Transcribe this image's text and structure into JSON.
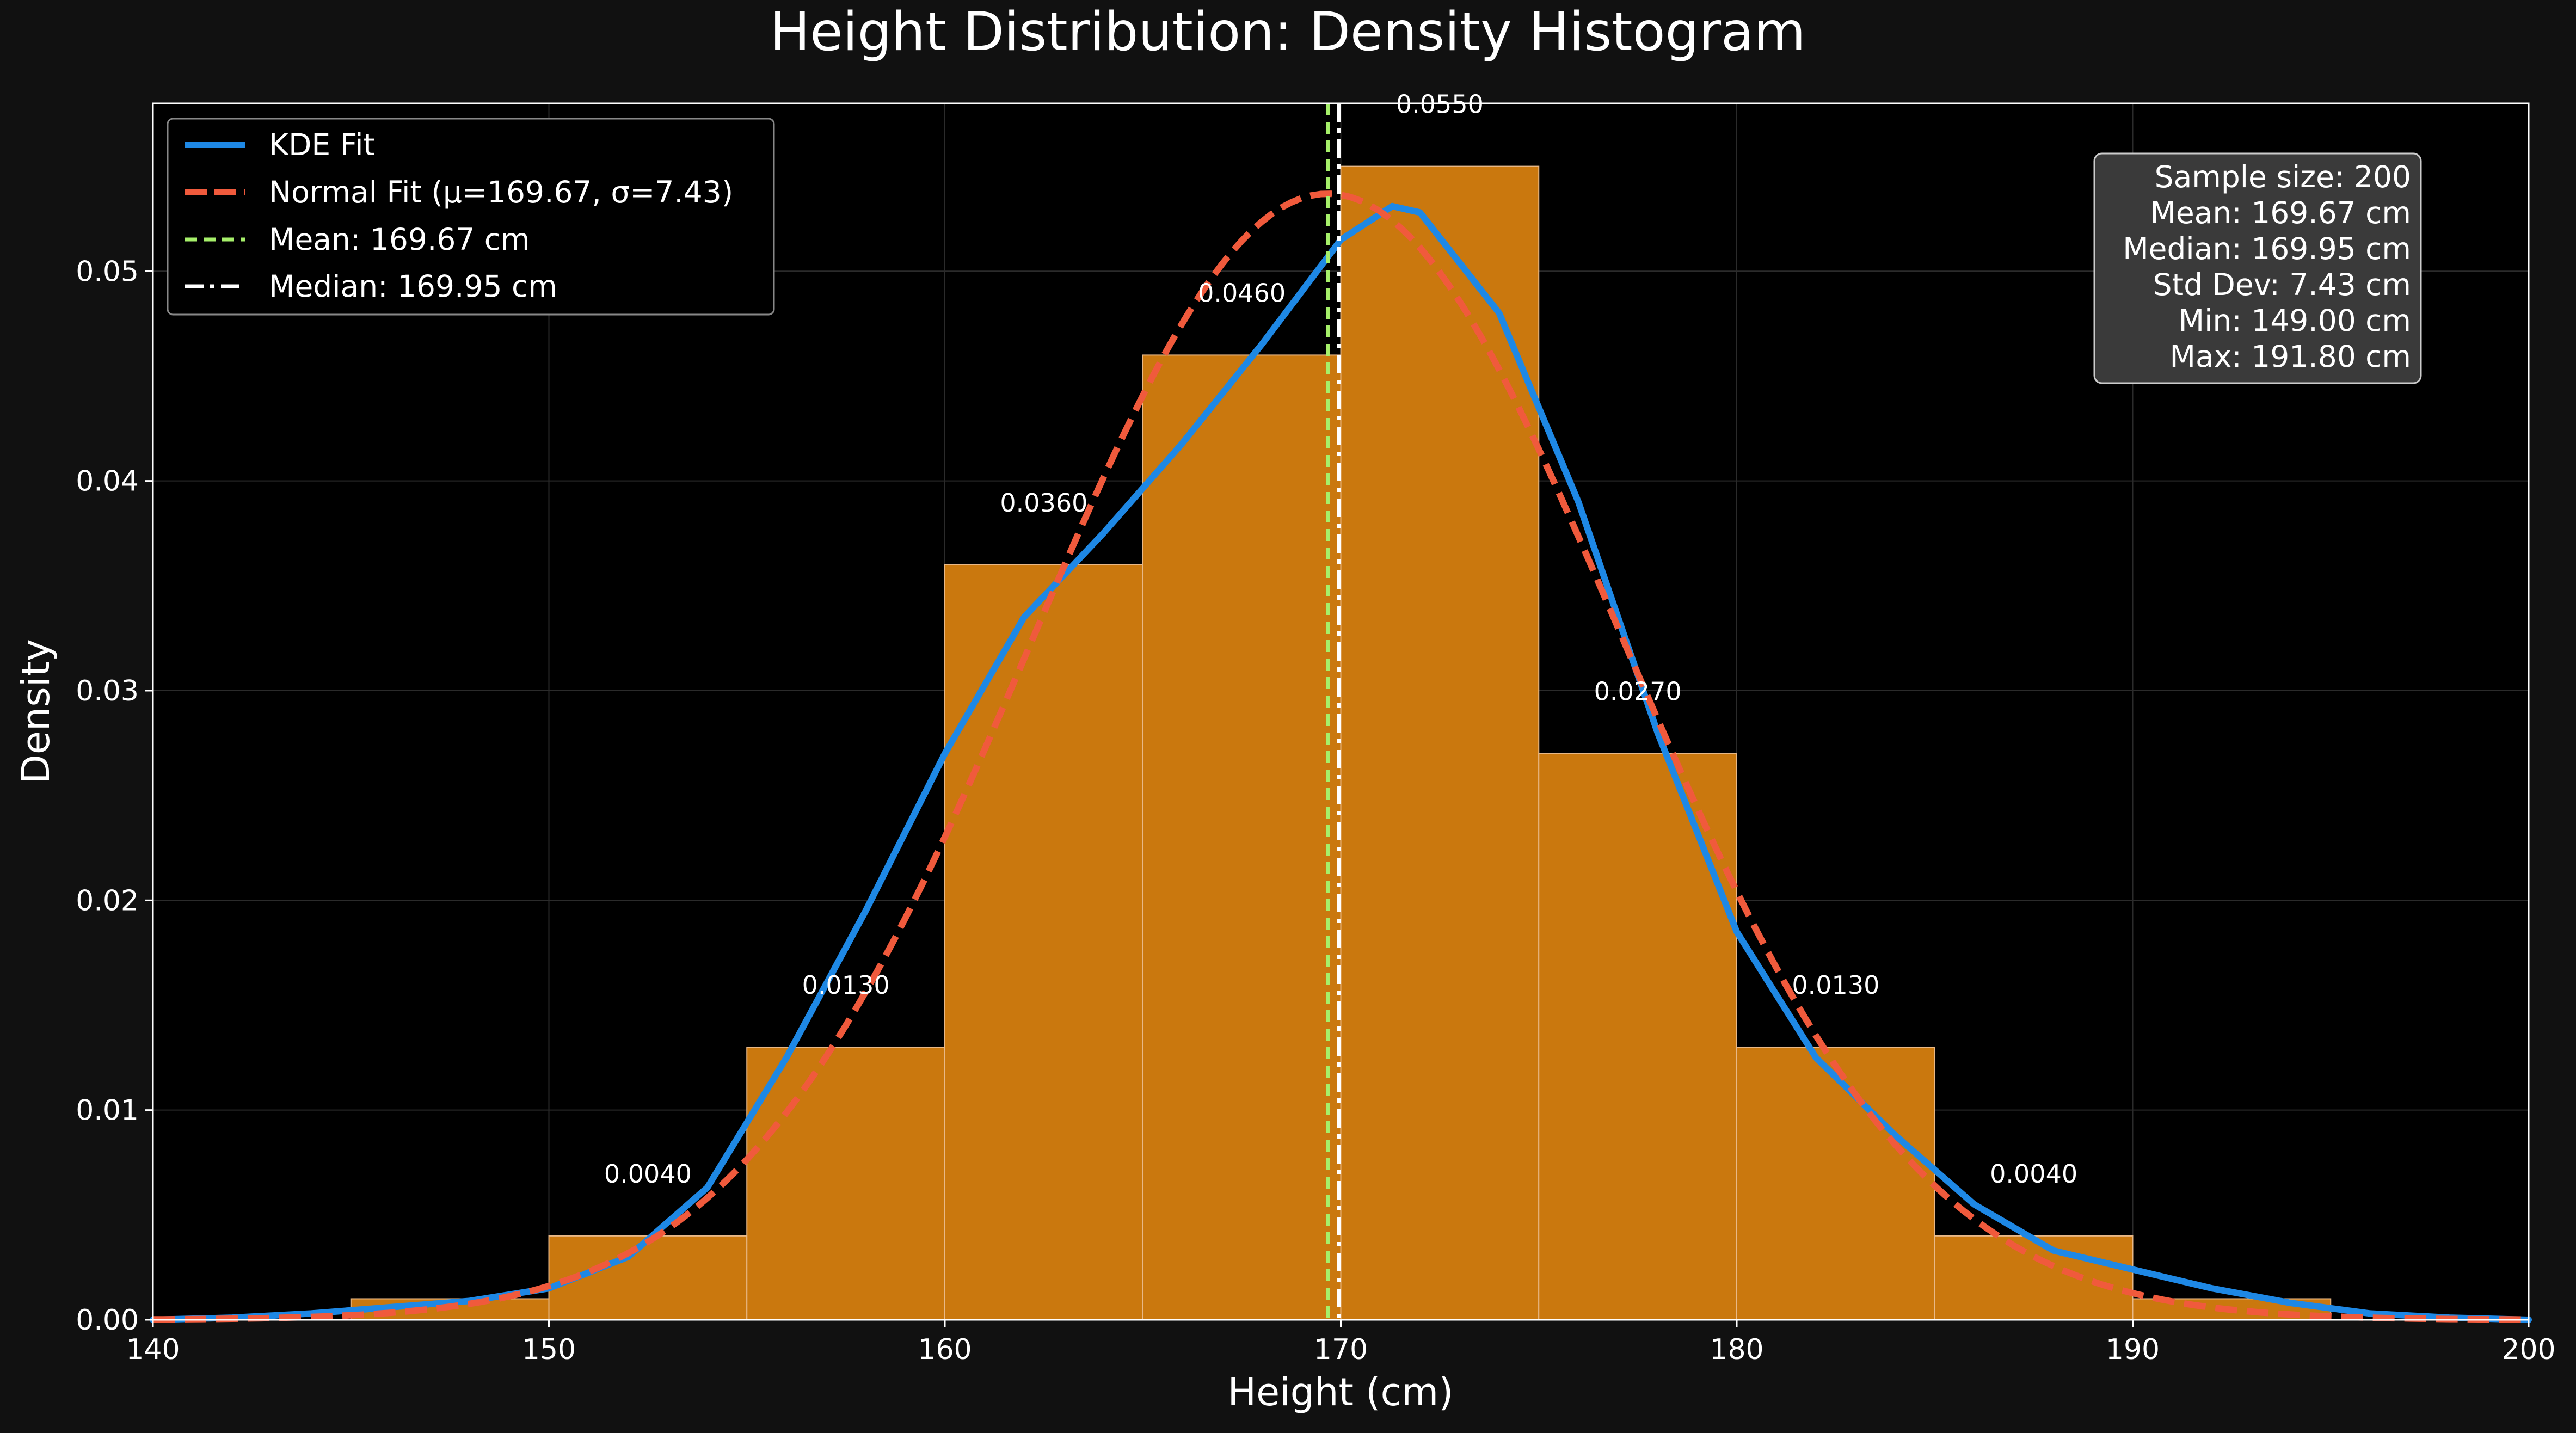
{
  "chart_data": {
    "type": "bar",
    "title": "Height Distribution: Density Histogram",
    "xlabel": "Height (cm)",
    "ylabel": "Density",
    "xlim": [
      140,
      200
    ],
    "ylim": [
      0,
      0.058
    ],
    "grid": true,
    "xticks": [
      "140",
      "150",
      "160",
      "170",
      "180",
      "190",
      "200"
    ],
    "yticks": [
      "0.00",
      "0.01",
      "0.02",
      "0.03",
      "0.04",
      "0.05"
    ],
    "bins": [
      {
        "start": 145,
        "end": 150,
        "density": 0.001,
        "label": ""
      },
      {
        "start": 150,
        "end": 155,
        "density": 0.004,
        "label": "0.0040"
      },
      {
        "start": 155,
        "end": 160,
        "density": 0.013,
        "label": "0.0130"
      },
      {
        "start": 160,
        "end": 165,
        "density": 0.036,
        "label": "0.0360"
      },
      {
        "start": 165,
        "end": 170,
        "density": 0.046,
        "label": "0.0460"
      },
      {
        "start": 170,
        "end": 175,
        "density": 0.055,
        "label": "0.0550"
      },
      {
        "start": 175,
        "end": 180,
        "density": 0.027,
        "label": "0.0270"
      },
      {
        "start": 180,
        "end": 185,
        "density": 0.013,
        "label": "0.0130"
      },
      {
        "start": 185,
        "end": 190,
        "density": 0.004,
        "label": "0.0040"
      },
      {
        "start": 190,
        "end": 195,
        "density": 0.001,
        "label": ""
      }
    ],
    "kde": {
      "name": "KDE Fit",
      "color": "#1e88e5",
      "x": [
        140,
        142,
        144,
        146,
        148,
        150,
        152,
        154,
        156,
        158,
        160,
        162,
        164,
        166,
        168,
        170,
        171.3,
        172,
        174,
        176,
        178,
        180,
        182,
        184,
        186,
        188,
        190,
        192,
        194,
        196,
        198,
        200
      ],
      "y": [
        0.0,
        0.0001,
        0.0003,
        0.0006,
        0.0009,
        0.0015,
        0.003,
        0.0063,
        0.0125,
        0.0195,
        0.027,
        0.0335,
        0.0375,
        0.0418,
        0.0465,
        0.0515,
        0.0531,
        0.0528,
        0.048,
        0.039,
        0.028,
        0.0185,
        0.0125,
        0.0088,
        0.0055,
        0.0033,
        0.0024,
        0.0015,
        0.0008,
        0.0003,
        0.0001,
        0.0
      ]
    },
    "normal_fit": {
      "name": "Normal Fit (μ=169.67, σ=7.43)",
      "color": "#f05a3c",
      "mu": 169.67,
      "sigma": 7.43
    },
    "mean_line": {
      "name": "Mean: 169.67 cm",
      "value": 169.67,
      "color": "#a6f06a"
    },
    "median_line": {
      "name": "Median: 169.95 cm",
      "value": 169.95,
      "color": "#ffffff"
    },
    "legend_position": "upper left",
    "stats_box": {
      "position": "upper right",
      "lines": [
        "Sample size: 200",
        "Mean: 169.67 cm",
        "Median: 169.95 cm",
        "Std Dev: 7.43 cm",
        "Min: 149.00 cm",
        "Max: 191.80 cm"
      ]
    },
    "colors": {
      "figure_bg": "#111111",
      "plot_bg": "#000000",
      "bar_fill": "#ca780e",
      "bar_edge": "#e8b887",
      "axis": "#ffffff",
      "grid": "#2b2b2b"
    }
  }
}
